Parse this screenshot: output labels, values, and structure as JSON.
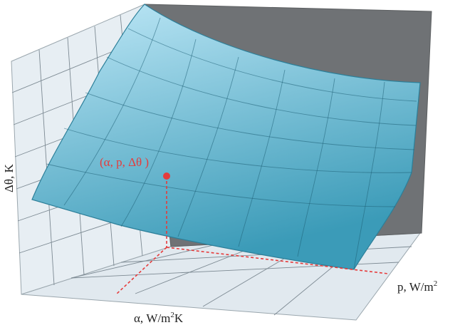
{
  "labels": {
    "z_axis": "Δθ, K",
    "x_axis": "α, W/m",
    "x_axis_sup": "2",
    "x_axis_tail": "K",
    "y_axis": "p, W/m",
    "y_axis_sup": "2",
    "point": "(α, p, Δθ )"
  },
  "colors": {
    "back_wall": "#dde7ee",
    "side_wall": "#e7eef3",
    "floor": "#e1e9ef",
    "dark_wall": "#6f7275",
    "surface_top": "#bfe8f7",
    "surface_bottom": "#3b9bb8",
    "accent": "#e63b3b"
  }
}
